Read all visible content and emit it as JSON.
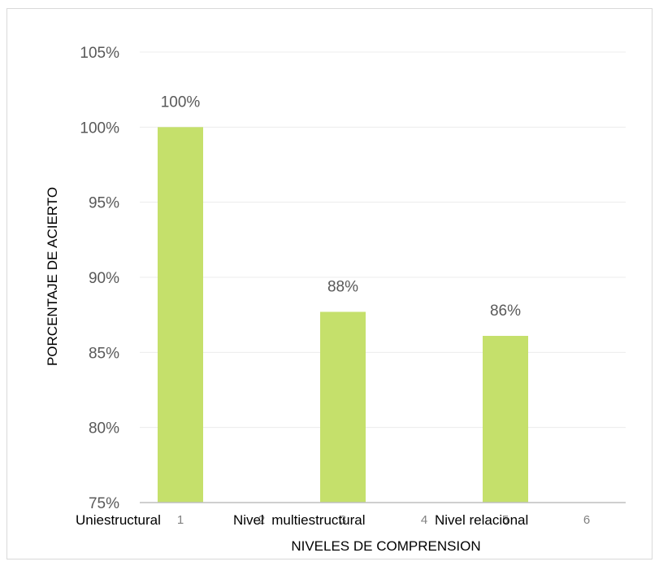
{
  "chart_data": {
    "type": "bar",
    "x_ticks": [
      "1",
      "2",
      "3",
      "4",
      "5",
      "6"
    ],
    "bars": [
      {
        "x": "1",
        "value": 100,
        "label": "100%"
      },
      {
        "x": "3",
        "value": 87.7,
        "label": "88%"
      },
      {
        "x": "5",
        "value": 86.1,
        "label": "86%"
      }
    ],
    "category_labels": [
      "Uniestructural",
      "Nivel  multiestructural",
      "Nivel relacional"
    ],
    "ylim": [
      75,
      105
    ],
    "y_ticks": [
      "75%",
      "80%",
      "85%",
      "90%",
      "95%",
      "100%",
      "105%"
    ],
    "xlabel": "NIVELES DE COMPRENSION",
    "ylabel": "PORCENTAJE DE ACIERTO",
    "bar_color": "#c5e06b",
    "grid": true
  }
}
